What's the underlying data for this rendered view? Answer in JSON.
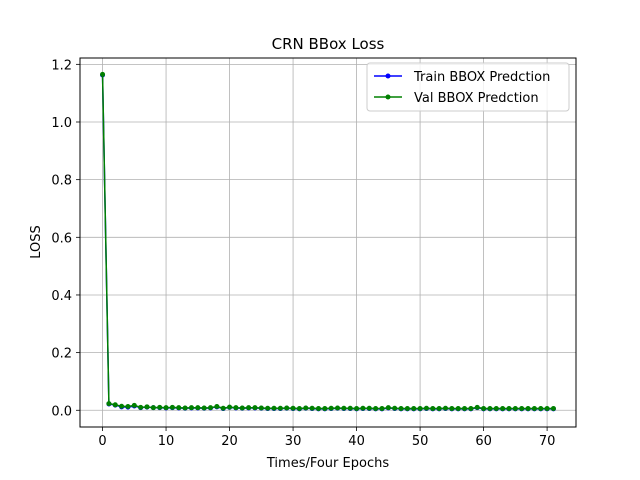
{
  "chart_data": {
    "type": "line",
    "title": "CRN BBox Loss",
    "xlabel": "Times/Four Epochs",
    "ylabel": "LOSS",
    "xlim": [
      -3.55,
      74.55
    ],
    "ylim": [
      -0.058,
      1.222
    ],
    "xticks": [
      0,
      10,
      20,
      30,
      40,
      50,
      60,
      70
    ],
    "yticks": [
      0.0,
      0.2,
      0.4,
      0.6,
      0.8,
      1.0,
      1.2
    ],
    "ytick_labels": [
      "0.0",
      "0.2",
      "0.4",
      "0.6",
      "0.8",
      "1.0",
      "1.2"
    ],
    "grid": true,
    "legend_position": "upper right",
    "x": [
      0,
      1,
      2,
      3,
      4,
      5,
      6,
      7,
      8,
      9,
      10,
      11,
      12,
      13,
      14,
      15,
      16,
      17,
      18,
      19,
      20,
      21,
      22,
      23,
      24,
      25,
      26,
      27,
      28,
      29,
      30,
      31,
      32,
      33,
      34,
      35,
      36,
      37,
      38,
      39,
      40,
      41,
      42,
      43,
      44,
      45,
      46,
      47,
      48,
      49,
      50,
      51,
      52,
      53,
      54,
      55,
      56,
      57,
      58,
      59,
      60,
      61,
      62,
      63,
      64,
      65,
      66,
      67,
      68,
      69,
      70,
      71
    ],
    "series": [
      {
        "name": "Train BBOX Predction",
        "color": "#0000ff",
        "values": [
          1.163,
          0.022,
          0.018,
          0.012,
          0.011,
          0.015,
          0.009,
          0.011,
          0.009,
          0.009,
          0.008,
          0.009,
          0.008,
          0.007,
          0.008,
          0.008,
          0.007,
          0.008,
          0.012,
          0.006,
          0.01,
          0.008,
          0.007,
          0.008,
          0.008,
          0.007,
          0.006,
          0.006,
          0.006,
          0.007,
          0.006,
          0.005,
          0.007,
          0.006,
          0.005,
          0.005,
          0.006,
          0.007,
          0.006,
          0.006,
          0.005,
          0.006,
          0.006,
          0.005,
          0.005,
          0.008,
          0.006,
          0.005,
          0.005,
          0.005,
          0.005,
          0.006,
          0.005,
          0.005,
          0.006,
          0.005,
          0.005,
          0.005,
          0.005,
          0.009,
          0.005,
          0.005,
          0.005,
          0.005,
          0.005,
          0.005,
          0.005,
          0.005,
          0.005,
          0.005,
          0.005,
          0.005
        ]
      },
      {
        "name": "Val BBOX Predction",
        "color": "#008000",
        "values": [
          1.165,
          0.023,
          0.019,
          0.014,
          0.013,
          0.017,
          0.01,
          0.012,
          0.009,
          0.01,
          0.009,
          0.01,
          0.009,
          0.008,
          0.009,
          0.009,
          0.008,
          0.009,
          0.013,
          0.007,
          0.011,
          0.009,
          0.008,
          0.009,
          0.009,
          0.008,
          0.007,
          0.007,
          0.007,
          0.008,
          0.007,
          0.006,
          0.008,
          0.007,
          0.006,
          0.006,
          0.007,
          0.008,
          0.007,
          0.007,
          0.006,
          0.007,
          0.007,
          0.006,
          0.006,
          0.009,
          0.007,
          0.006,
          0.006,
          0.006,
          0.006,
          0.007,
          0.006,
          0.006,
          0.007,
          0.006,
          0.006,
          0.006,
          0.006,
          0.01,
          0.006,
          0.006,
          0.006,
          0.006,
          0.006,
          0.006,
          0.006,
          0.006,
          0.006,
          0.006,
          0.006,
          0.006
        ]
      }
    ]
  }
}
